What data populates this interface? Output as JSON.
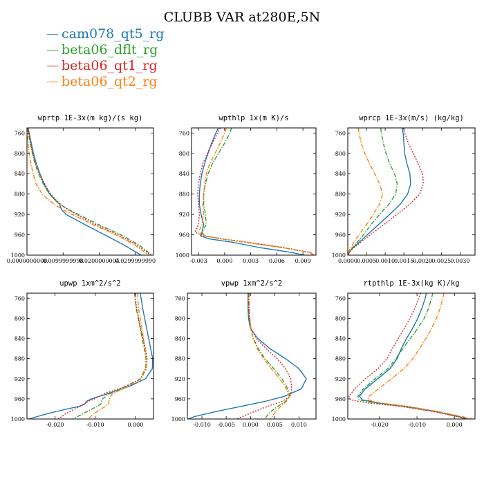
{
  "title": "CLUBB VAR at280E,5N",
  "legend": [
    {
      "label": "cam078_qt5_rg",
      "color": "#1f77b4",
      "dash": "solid"
    },
    {
      "label": "beta06_dflt_rg",
      "color": "#2ca02c",
      "dash": "dashdot"
    },
    {
      "label": "beta06_qt1_rg",
      "color": "#d62728",
      "dash": "dotted"
    },
    {
      "label": "beta06_qt2_rg",
      "color": "#ff7f0e",
      "dash": "dashdot"
    }
  ],
  "chart_data": [
    {
      "type": "line",
      "title": "wprtp  1E-3x(m kg)/(s kg)",
      "xlim": [
        0.0,
        0.035
      ],
      "ylim": [
        1000,
        750
      ],
      "xticks": [
        0.0,
        0.01,
        0.02,
        0.03
      ],
      "xtick_labels": [
        "0.0000000000",
        "0.0099999998",
        "0.0200000004",
        "0.0299999990"
      ],
      "yticks": [
        760,
        800,
        840,
        880,
        920,
        960,
        1000
      ],
      "ytick_labels": [
        "760",
        "800",
        "840",
        "880",
        "920",
        "960",
        "1000"
      ],
      "y": [
        750,
        760,
        780,
        800,
        820,
        840,
        860,
        880,
        890,
        900,
        910,
        920,
        940,
        960,
        980,
        1000
      ],
      "series": [
        {
          "name": "cam078_qt5_rg",
          "x": [
            0.0003,
            0.0006,
            0.0012,
            0.0018,
            0.0026,
            0.0036,
            0.0047,
            0.0063,
            0.0076,
            0.009,
            0.0095,
            0.0108,
            0.016,
            0.0215,
            0.0268,
            0.0316
          ]
        },
        {
          "name": "beta06_dflt_rg",
          "x": [
            0.0002,
            0.0004,
            0.0009,
            0.0015,
            0.0022,
            0.0032,
            0.0045,
            0.0062,
            0.0075,
            0.009,
            0.0114,
            0.0142,
            0.0198,
            0.026,
            0.031,
            0.0346
          ]
        },
        {
          "name": "beta06_qt1_rg",
          "x": [
            0.0003,
            0.0005,
            0.001,
            0.0016,
            0.0024,
            0.0035,
            0.0049,
            0.0066,
            0.0078,
            0.0093,
            0.0112,
            0.0136,
            0.019,
            0.0252,
            0.0304,
            0.0343
          ]
        },
        {
          "name": "beta06_qt2_rg",
          "x": [
            0.0,
            0.0001,
            0.0003,
            0.0006,
            0.0011,
            0.0017,
            0.0025,
            0.0042,
            0.0058,
            0.0075,
            0.0098,
            0.0125,
            0.0182,
            0.0246,
            0.0298,
            0.0336
          ]
        }
      ]
    },
    {
      "type": "line",
      "title": "wpthlp  1x(m K)/s",
      "xlim": [
        -0.0038,
        0.0105
      ],
      "ylim": [
        1000,
        750
      ],
      "xticks": [
        -0.003,
        0.0,
        0.003,
        0.006,
        0.009
      ],
      "xtick_labels": [
        "-0.003",
        "0.000",
        "0.003",
        "0.006",
        "0.009"
      ],
      "yticks": [
        760,
        800,
        840,
        880,
        920,
        960,
        1000
      ],
      "ytick_labels": [
        "760",
        "800",
        "840",
        "880",
        "920",
        "960",
        "1000"
      ],
      "y": [
        750,
        760,
        780,
        800,
        820,
        840,
        860,
        880,
        900,
        920,
        940,
        955,
        962,
        968,
        975,
        985,
        995,
        1000
      ],
      "series": [
        {
          "name": "cam078_qt5_rg",
          "x": [
            -0.0007,
            -0.001,
            -0.0015,
            -0.0019,
            -0.0023,
            -0.0026,
            -0.0028,
            -0.0029,
            -0.0029,
            -0.0027,
            -0.0024,
            -0.0026,
            -0.0028,
            -0.0018,
            0.001,
            0.004,
            0.0078,
            0.0092
          ]
        },
        {
          "name": "beta06_dflt_rg",
          "x": [
            0.0008,
            0.0006,
            0.0,
            -0.0007,
            -0.0014,
            -0.0019,
            -0.0022,
            -0.0024,
            -0.0024,
            -0.0022,
            -0.0021,
            -0.0026,
            -0.0023,
            -0.0005,
            0.0025,
            0.0065,
            0.0098,
            0.0102
          ]
        },
        {
          "name": "beta06_qt1_rg",
          "x": [
            -0.0005,
            -0.0008,
            -0.0014,
            -0.002,
            -0.0025,
            -0.0028,
            -0.003,
            -0.0031,
            -0.003,
            -0.0029,
            -0.003,
            -0.0034,
            -0.0024,
            -0.0002,
            0.0028,
            0.0068,
            0.0099,
            0.0103
          ]
        },
        {
          "name": "beta06_qt2_rg",
          "x": [
            0.0002,
            0.0,
            -0.0005,
            -0.0011,
            -0.0017,
            -0.0021,
            -0.0023,
            -0.0024,
            -0.0025,
            -0.0024,
            -0.0026,
            -0.003,
            -0.0022,
            -0.0004,
            0.0026,
            0.0066,
            0.0098,
            0.0102
          ]
        }
      ]
    },
    {
      "type": "line",
      "title": "wprcp  1E-3x(m/s) (kg/kg)",
      "xlim": [
        0.0,
        0.0034
      ],
      "ylim": [
        1000,
        750
      ],
      "xticks": [
        0.0,
        0.0005,
        0.001,
        0.0015,
        0.002,
        0.0025,
        0.003
      ],
      "xtick_labels": [
        "0.0000",
        "0.0005",
        "0.0010",
        "0.0015",
        "0.0020",
        "0.0025",
        "0.0030"
      ],
      "yticks": [
        760,
        800,
        840,
        880,
        920,
        960,
        1000
      ],
      "ytick_labels": [
        "760",
        "800",
        "840",
        "880",
        "920",
        "960",
        "1000"
      ],
      "y": [
        750,
        760,
        780,
        800,
        820,
        840,
        860,
        880,
        900,
        920,
        940,
        960,
        975,
        990,
        1000
      ],
      "series": [
        {
          "name": "cam078_qt5_rg",
          "x": [
            0.00145,
            0.00148,
            0.0015,
            0.00152,
            0.00158,
            0.00166,
            0.00168,
            0.0016,
            0.0014,
            0.00112,
            0.00082,
            0.00052,
            0.0003,
            8e-05,
            0.0
          ]
        },
        {
          "name": "beta06_dflt_rg",
          "x": [
            0.00088,
            0.0009,
            0.00095,
            0.00102,
            0.00112,
            0.00125,
            0.00132,
            0.00128,
            0.0011,
            0.00085,
            0.00062,
            0.00042,
            0.00025,
            7e-05,
            0.0
          ]
        },
        {
          "name": "beta06_qt1_rg",
          "x": [
            0.00148,
            0.00152,
            0.00162,
            0.00175,
            0.00188,
            0.002,
            0.00202,
            0.00192,
            0.00166,
            0.00132,
            0.00096,
            0.0006,
            0.00034,
            9e-05,
            0.0
          ]
        },
        {
          "name": "beta06_qt2_rg",
          "x": [
            0.00028,
            0.0003,
            0.00036,
            0.00045,
            0.00058,
            0.00072,
            0.00085,
            0.00093,
            0.00085,
            0.00068,
            0.0005,
            0.0003,
            0.00016,
            4e-05,
            0.0
          ]
        }
      ]
    },
    {
      "type": "line",
      "title": "upwp  1xm^2/s^2",
      "xlim": [
        -0.027,
        0.0045
      ],
      "ylim": [
        1000,
        750
      ],
      "xticks": [
        -0.02,
        -0.01,
        0.0
      ],
      "xtick_labels": [
        "-0.020",
        "-0.010",
        "0.000"
      ],
      "yticks": [
        760,
        800,
        840,
        880,
        920,
        960,
        1000
      ],
      "ytick_labels": [
        "760",
        "800",
        "840",
        "880",
        "920",
        "960",
        "1000"
      ],
      "y": [
        750,
        760,
        780,
        800,
        820,
        840,
        860,
        880,
        900,
        920,
        935,
        950,
        960,
        965,
        970,
        975,
        980,
        990,
        1000
      ],
      "series": [
        {
          "name": "cam078_qt5_rg",
          "x": [
            0.0012,
            0.0014,
            0.0018,
            0.0023,
            0.0028,
            0.0033,
            0.0038,
            0.0043,
            0.0042,
            0.0025,
            -0.0015,
            -0.007,
            -0.011,
            -0.0122,
            -0.0126,
            -0.014,
            -0.017,
            -0.0222,
            -0.0265
          ]
        },
        {
          "name": "beta06_dflt_rg",
          "x": [
            -0.0002,
            -0.0001,
            0.0002,
            0.0007,
            0.0012,
            0.0017,
            0.0022,
            0.0026,
            0.0025,
            0.0012,
            -0.0022,
            -0.0065,
            -0.0082,
            -0.0085,
            -0.0086,
            -0.0095,
            -0.0108,
            -0.0132,
            -0.0155
          ]
        },
        {
          "name": "beta06_qt1_rg",
          "x": [
            -0.0002,
            0.0,
            0.0003,
            0.0008,
            0.0013,
            0.0019,
            0.0025,
            0.0029,
            0.0027,
            0.0015,
            -0.0025,
            -0.0078,
            -0.0102,
            -0.0118,
            -0.0126,
            -0.0138,
            -0.015,
            -0.0175,
            -0.0192
          ]
        },
        {
          "name": "beta06_qt2_rg",
          "x": [
            0.0005,
            0.0006,
            0.0008,
            0.0012,
            0.0016,
            0.002,
            0.0024,
            0.0027,
            0.0026,
            0.0015,
            -0.0018,
            -0.0058,
            -0.0065,
            -0.0066,
            -0.0067,
            -0.0075,
            -0.0085,
            -0.0105,
            -0.0118
          ]
        }
      ]
    },
    {
      "type": "line",
      "title": "vpwp  1xm^2/s^2",
      "xlim": [
        -0.013,
        0.0135
      ],
      "ylim": [
        1000,
        750
      ],
      "xticks": [
        -0.01,
        -0.005,
        0.0,
        0.005,
        0.01
      ],
      "xtick_labels": [
        "-0.010",
        "-0.005",
        "0.000",
        "0.005",
        "0.010"
      ],
      "yticks": [
        760,
        800,
        840,
        880,
        920,
        960,
        1000
      ],
      "ytick_labels": [
        "760",
        "800",
        "840",
        "880",
        "920",
        "960",
        "1000"
      ],
      "y": [
        750,
        760,
        780,
        800,
        820,
        840,
        860,
        880,
        900,
        920,
        940,
        955,
        965,
        975,
        985,
        995,
        1000
      ],
      "series": [
        {
          "name": "cam078_qt5_rg",
          "x": [
            -0.0005,
            -0.0005,
            -0.0005,
            -0.0004,
            0.0,
            0.0015,
            0.004,
            0.0072,
            0.01,
            0.0115,
            0.0105,
            0.007,
            0.003,
            -0.002,
            -0.007,
            -0.0115,
            -0.0128
          ]
        },
        {
          "name": "beta06_dflt_rg",
          "x": [
            -0.0004,
            -0.0004,
            -0.0003,
            -0.0002,
            0.0,
            0.0006,
            0.0016,
            0.003,
            0.0048,
            0.0065,
            0.0077,
            0.0081,
            0.0072,
            0.0056,
            0.0042,
            0.0033,
            0.003
          ]
        },
        {
          "name": "beta06_qt1_rg",
          "x": [
            -0.0004,
            -0.0004,
            -0.0003,
            -0.0002,
            0.0001,
            0.0012,
            0.0032,
            0.0055,
            0.0072,
            0.0083,
            0.0085,
            0.0082,
            0.0065,
            0.0035,
            0.0008,
            -0.0016,
            -0.0028
          ]
        },
        {
          "name": "beta06_qt2_rg",
          "x": [
            -0.0002,
            -0.0002,
            -0.0002,
            -0.0001,
            0.0001,
            0.0005,
            0.0014,
            0.0027,
            0.0043,
            0.006,
            0.0074,
            0.008,
            0.0074,
            0.0062,
            0.0052,
            0.0045,
            0.0042
          ]
        }
      ]
    },
    {
      "type": "line",
      "title": "rtpthlp  1E-3x(kg K)/kg",
      "xlim": [
        -0.0285,
        0.0055
      ],
      "ylim": [
        1000,
        750
      ],
      "xticks": [
        -0.02,
        -0.01,
        0.0
      ],
      "xtick_labels": [
        "-0.020",
        "-0.010",
        "0.000"
      ],
      "yticks": [
        760,
        800,
        840,
        880,
        920,
        960,
        1000
      ],
      "ytick_labels": [
        "760",
        "800",
        "840",
        "880",
        "920",
        "960",
        "1000"
      ],
      "y": [
        750,
        760,
        780,
        800,
        820,
        840,
        860,
        880,
        900,
        920,
        940,
        955,
        962,
        968,
        975,
        985,
        995,
        1000
      ],
      "series": [
        {
          "name": "cam078_qt5_rg",
          "x": [
            -0.0075,
            -0.0078,
            -0.0087,
            -0.0098,
            -0.0112,
            -0.0128,
            -0.0142,
            -0.0153,
            -0.0172,
            -0.0205,
            -0.0238,
            -0.0254,
            -0.0246,
            -0.0205,
            -0.0128,
            -0.005,
            0.0012,
            0.0035
          ]
        },
        {
          "name": "beta06_dflt_rg",
          "x": [
            -0.0058,
            -0.0061,
            -0.0069,
            -0.0081,
            -0.0098,
            -0.0118,
            -0.0138,
            -0.0156,
            -0.0178,
            -0.0212,
            -0.0243,
            -0.0258,
            -0.0255,
            -0.0215,
            -0.0135,
            -0.0055,
            0.0008,
            0.003
          ]
        },
        {
          "name": "beta06_qt1_rg",
          "x": [
            -0.009,
            -0.0095,
            -0.0106,
            -0.0119,
            -0.0134,
            -0.015,
            -0.0166,
            -0.018,
            -0.0204,
            -0.0238,
            -0.0266,
            -0.0282,
            -0.0278,
            -0.0232,
            -0.0142,
            -0.0058,
            0.0008,
            0.0032
          ]
        },
        {
          "name": "beta06_qt2_rg",
          "x": [
            -0.0028,
            -0.0031,
            -0.0038,
            -0.0048,
            -0.0061,
            -0.0076,
            -0.0093,
            -0.0111,
            -0.0135,
            -0.0168,
            -0.0203,
            -0.0228,
            -0.0232,
            -0.02,
            -0.0125,
            -0.0045,
            0.002,
            0.0048
          ]
        }
      ]
    }
  ]
}
